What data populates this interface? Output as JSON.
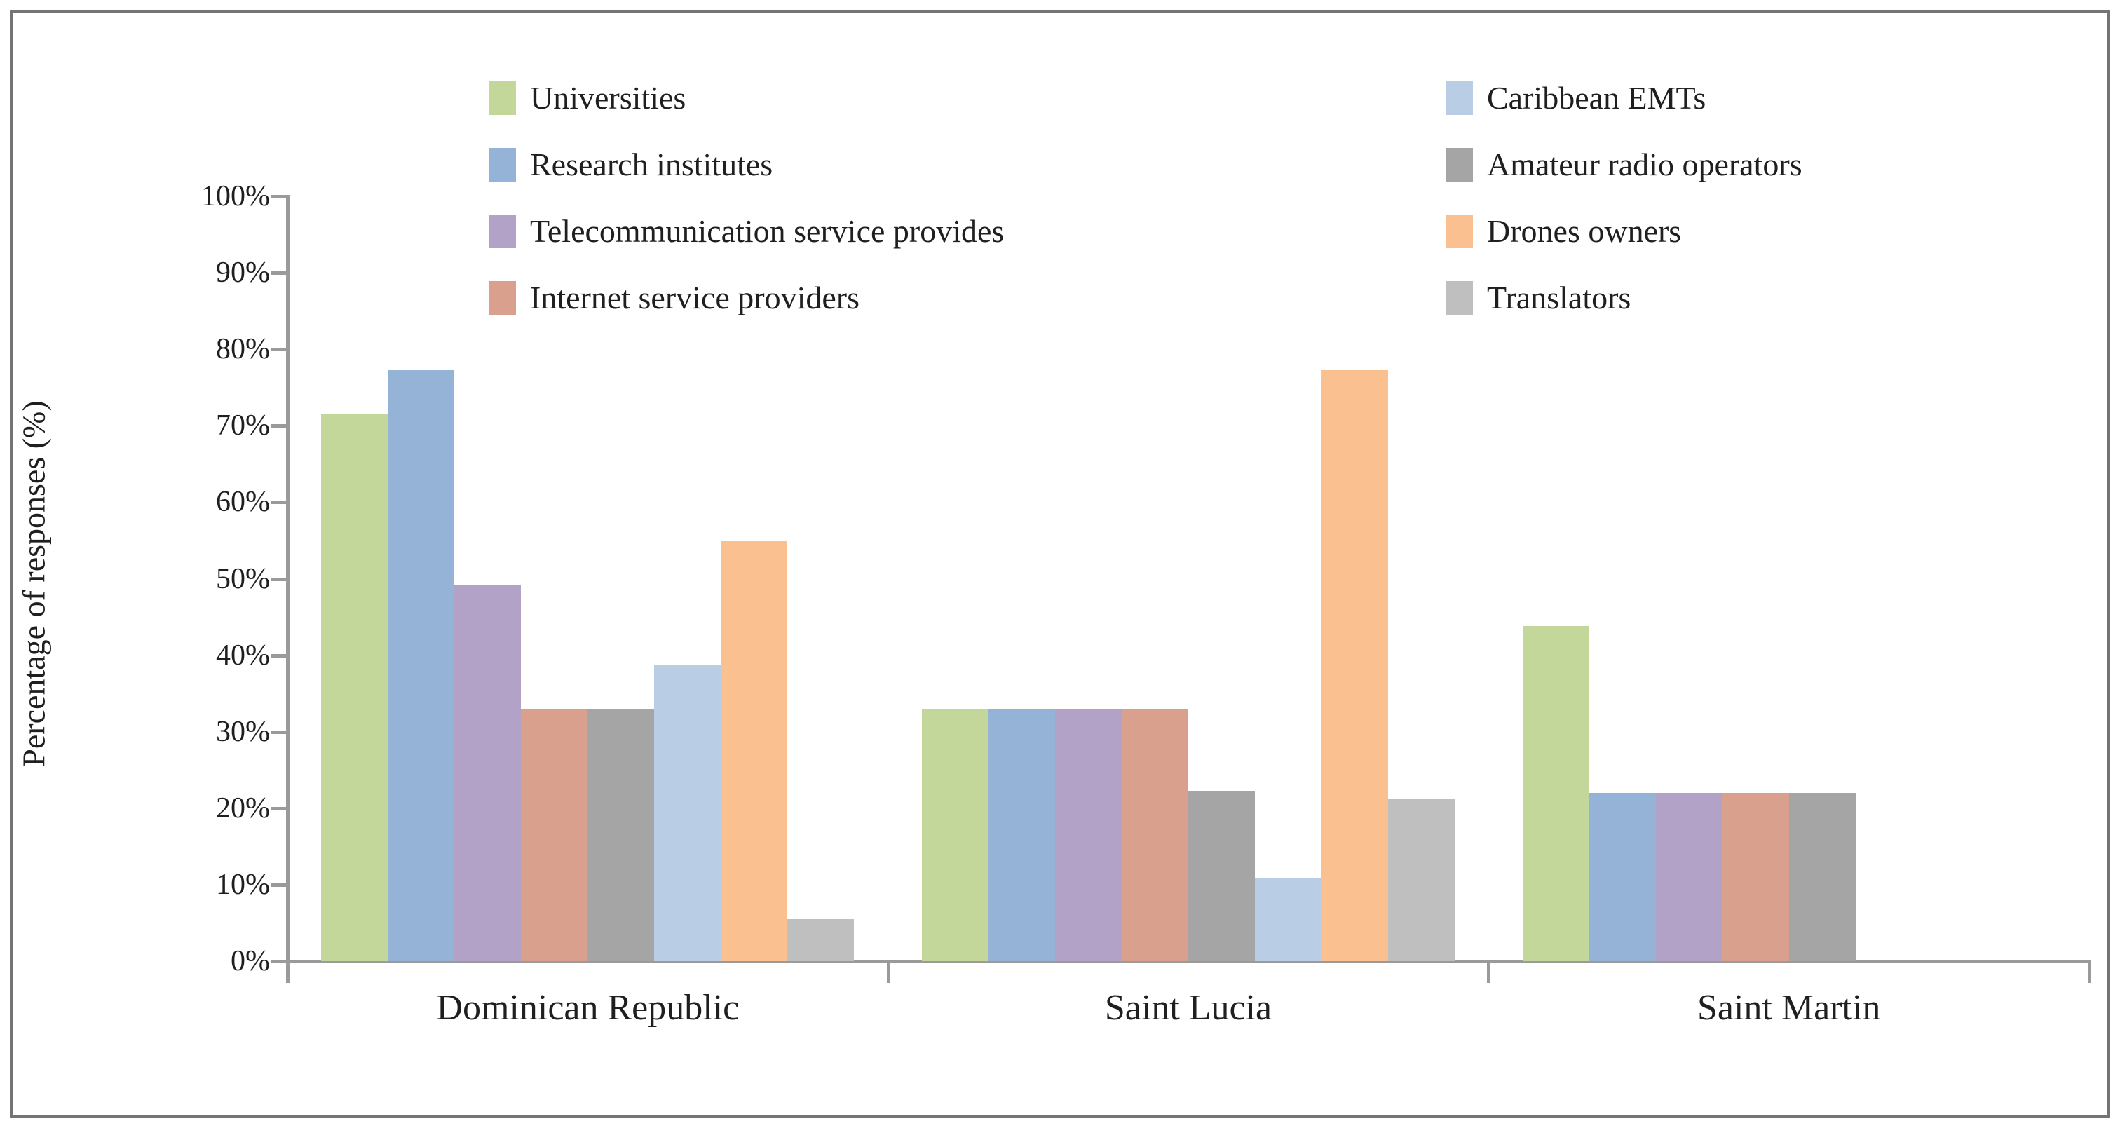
{
  "figure": {
    "background": "#ffffff",
    "border_color": "#747474",
    "axis_color": "#9a9a9a",
    "text_color": "#1f1f1f"
  },
  "y_axis": {
    "title": "Percentage of responses (%)",
    "tick_labels": [
      "100%",
      "90%",
      "80%",
      "70%",
      "60%",
      "50%",
      "40%",
      "30%",
      "20%",
      "10%",
      "0%"
    ],
    "min": 0,
    "max": 100,
    "step": 10
  },
  "x_axis": {
    "categories": [
      "Dominican Republic",
      "Saint Lucia",
      "Saint Martin"
    ]
  },
  "legend": {
    "columns": [
      [
        {
          "label": "Universities",
          "color": "#C4D79B"
        },
        {
          "label": "Research institutes",
          "color": "#95B3D7"
        },
        {
          "label": "Telecommunication service provides",
          "color": "#B3A2C7"
        },
        {
          "label": "Internet service providers",
          "color": "#DAA08E"
        }
      ],
      [
        {
          "label": "Caribbean EMTs",
          "color": "#B9CDE5"
        },
        {
          "label": "Amateur radio operators",
          "color": "#A5A5A5"
        },
        {
          "label": "Drones owners",
          "color": "#FAC090"
        },
        {
          "label": "Translators",
          "color": "#BFBFBF"
        }
      ]
    ]
  },
  "chart_data": {
    "type": "bar",
    "title": "",
    "xlabel": "",
    "ylabel": "Percentage of responses (%)",
    "ylim": [
      0,
      100
    ],
    "grid": false,
    "legend_position": "top-center, two columns",
    "categories": [
      "Dominican Republic",
      "Saint Lucia",
      "Saint Martin"
    ],
    "series": [
      {
        "name": "Universities",
        "color": "#C4D79B",
        "values": [
          71.5,
          33.0,
          43.8
        ]
      },
      {
        "name": "Research institutes",
        "color": "#95B3D7",
        "values": [
          77.3,
          33.0,
          22.0
        ]
      },
      {
        "name": "Telecommunication service provides",
        "color": "#B3A2C7",
        "values": [
          49.2,
          33.0,
          22.0
        ]
      },
      {
        "name": "Internet service providers",
        "color": "#DAA08E",
        "values": [
          33.0,
          33.0,
          22.0
        ]
      },
      {
        "name": "Amateur radio operators",
        "color": "#A5A5A5",
        "values": [
          33.0,
          22.2,
          22.0
        ]
      },
      {
        "name": "Caribbean EMTs",
        "color": "#B9CDE5",
        "values": [
          38.8,
          10.8,
          0
        ]
      },
      {
        "name": "Drones owners",
        "color": "#FAC090",
        "values": [
          55.0,
          77.3,
          0
        ]
      },
      {
        "name": "Translators",
        "color": "#BFBFBF",
        "values": [
          5.5,
          21.3,
          0
        ]
      }
    ]
  }
}
